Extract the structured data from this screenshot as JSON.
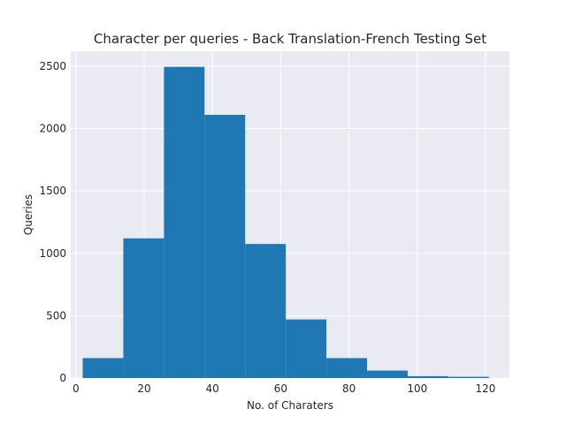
{
  "chart_data": {
    "type": "bar",
    "title": "Character per queries - Back Translation-French Testing Set",
    "xlabel": "No. of Charaters",
    "ylabel": "Queries",
    "bin_edges": [
      2,
      13.9,
      25.8,
      37.7,
      49.6,
      61.5,
      73.4,
      85.3,
      97.2,
      109.1,
      121
    ],
    "values": [
      160,
      1120,
      2495,
      2110,
      1075,
      470,
      160,
      60,
      15,
      10
    ],
    "xlim": [
      -1.5,
      127
    ],
    "ylim": [
      0,
      2620
    ],
    "xticks": [
      0,
      20,
      40,
      60,
      80,
      100,
      120
    ],
    "yticks": [
      0,
      500,
      1000,
      1500,
      2000,
      2500
    ],
    "bar_color": "#1f77b4",
    "background_color": "#eaeaf2",
    "grid_color": "#ffffff",
    "grid": true
  }
}
